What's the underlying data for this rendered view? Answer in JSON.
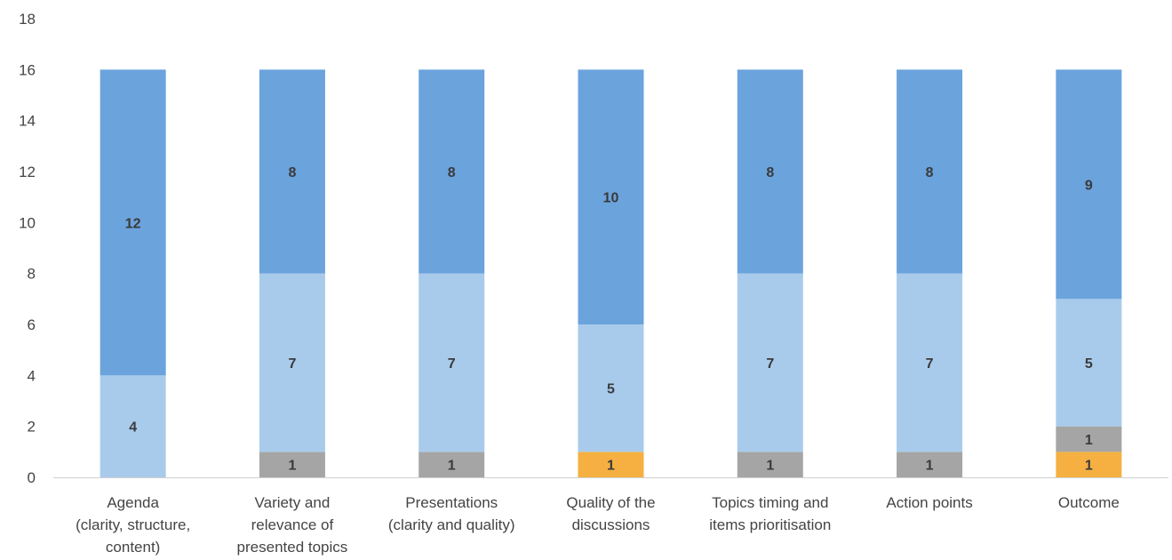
{
  "chart_data": {
    "type": "bar",
    "stacked": true,
    "categories": [
      [
        "Agenda",
        "(clarity, structure,",
        "content)"
      ],
      [
        "Variety and",
        "relevance of",
        "presented topics"
      ],
      [
        "Presentations",
        "(clarity and quality)"
      ],
      [
        "Quality of the",
        "discussions"
      ],
      [
        "Topics timing and",
        "items prioritisation"
      ],
      [
        "Action points"
      ],
      [
        "Outcome"
      ]
    ],
    "series": [
      {
        "color": "#F5B041",
        "values": [
          0,
          0,
          0,
          1,
          0,
          0,
          1
        ]
      },
      {
        "color": "#A5A5A5",
        "values": [
          0,
          1,
          1,
          0,
          1,
          1,
          1
        ]
      },
      {
        "color": "#A8CBEB",
        "values": [
          4,
          7,
          7,
          5,
          7,
          7,
          5
        ]
      },
      {
        "color": "#6BA3DD",
        "values": [
          12,
          8,
          8,
          10,
          8,
          8,
          9
        ]
      }
    ],
    "ylim": [
      0,
      18
    ],
    "yticks": [
      0,
      2,
      4,
      6,
      8,
      10,
      12,
      14,
      16,
      18
    ],
    "grid": false,
    "legend": "none",
    "title": "",
    "xlabel": "",
    "ylabel": ""
  }
}
